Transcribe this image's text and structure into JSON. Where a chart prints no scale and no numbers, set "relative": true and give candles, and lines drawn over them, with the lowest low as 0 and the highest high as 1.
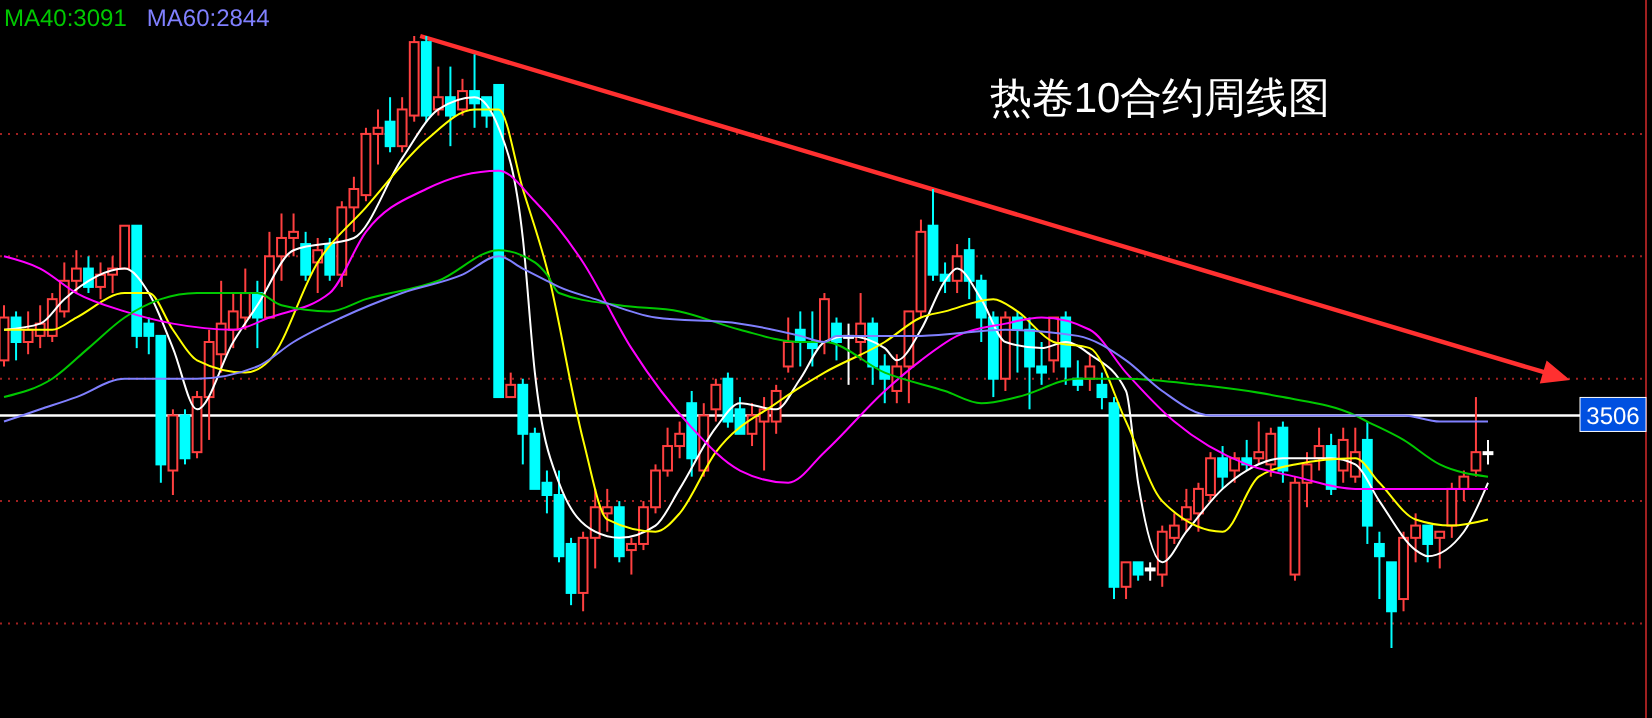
{
  "chart_data": {
    "type": "candlestick",
    "title": "热卷10合约周线图",
    "relative": true,
    "legend": "top left",
    "annotations": [
      "3506"
    ],
    "categories": [
      null,
      null,
      null,
      null,
      null,
      null,
      null,
      null,
      null,
      null,
      null,
      null,
      null,
      null,
      null,
      null,
      null,
      null,
      null,
      null,
      null,
      null,
      null,
      null,
      null,
      null,
      null,
      null,
      null,
      null,
      null,
      null,
      null,
      null,
      null,
      null,
      null,
      null,
      null,
      null,
      null,
      null,
      null,
      null,
      null,
      null,
      null,
      null,
      null,
      null,
      null,
      null,
      null,
      null,
      null,
      null,
      null,
      null,
      null,
      null,
      null,
      null,
      null,
      null,
      null,
      null,
      null,
      null,
      null,
      null,
      null,
      null,
      null,
      null,
      null,
      null,
      null,
      null,
      null,
      null,
      null,
      null,
      null,
      null,
      null,
      null,
      null,
      null,
      null,
      null,
      null,
      null,
      null,
      null,
      null,
      null,
      null,
      null,
      null,
      null,
      null,
      null,
      null,
      null,
      null,
      null,
      null,
      null,
      null,
      null,
      null,
      null,
      null,
      null,
      null,
      null,
      null,
      null,
      null,
      null,
      null,
      null,
      null,
      null
    ],
    "ohlc": [
      [
        0.47,
        0.56,
        0.46,
        0.54
      ],
      [
        0.54,
        0.55,
        0.47,
        0.5
      ],
      [
        0.5,
        0.55,
        0.48,
        0.52
      ],
      [
        0.51,
        0.56,
        0.49,
        0.53
      ],
      [
        0.51,
        0.58,
        0.5,
        0.57
      ],
      [
        0.55,
        0.63,
        0.54,
        0.6
      ],
      [
        0.6,
        0.65,
        0.58,
        0.62
      ],
      [
        0.62,
        0.64,
        0.58,
        0.59
      ],
      [
        0.59,
        0.63,
        0.57,
        0.61
      ],
      [
        0.61,
        0.64,
        0.58,
        0.62
      ],
      [
        0.62,
        0.69,
        0.62,
        0.69
      ],
      [
        0.69,
        0.69,
        0.49,
        0.51
      ],
      [
        0.53,
        0.54,
        0.48,
        0.51
      ],
      [
        0.51,
        0.51,
        0.27,
        0.3
      ],
      [
        0.29,
        0.39,
        0.25,
        0.38
      ],
      [
        0.38,
        0.39,
        0.3,
        0.31
      ],
      [
        0.32,
        0.42,
        0.31,
        0.41
      ],
      [
        0.41,
        0.52,
        0.34,
        0.5
      ],
      [
        0.48,
        0.6,
        0.45,
        0.53
      ],
      [
        0.52,
        0.58,
        0.49,
        0.55
      ],
      [
        0.54,
        0.62,
        0.52,
        0.58
      ],
      [
        0.58,
        0.6,
        0.49,
        0.54
      ],
      [
        0.54,
        0.68,
        0.54,
        0.64
      ],
      [
        0.64,
        0.71,
        0.6,
        0.67
      ],
      [
        0.67,
        0.71,
        0.64,
        0.68
      ],
      [
        0.66,
        0.68,
        0.6,
        0.61
      ],
      [
        0.63,
        0.67,
        0.58,
        0.65
      ],
      [
        0.66,
        0.67,
        0.6,
        0.61
      ],
      [
        0.61,
        0.73,
        0.59,
        0.72
      ],
      [
        0.72,
        0.77,
        0.68,
        0.75
      ],
      [
        0.74,
        0.85,
        0.73,
        0.84
      ],
      [
        0.84,
        0.88,
        0.79,
        0.85
      ],
      [
        0.86,
        0.9,
        0.81,
        0.82
      ],
      [
        0.82,
        0.9,
        0.81,
        0.88
      ],
      [
        0.87,
        1.0,
        0.86,
        0.99
      ],
      [
        0.99,
        1.0,
        0.86,
        0.87
      ],
      [
        0.88,
        0.95,
        0.87,
        0.9
      ],
      [
        0.9,
        0.95,
        0.82,
        0.87
      ],
      [
        0.88,
        0.93,
        0.87,
        0.91
      ],
      [
        0.91,
        0.97,
        0.85,
        0.89
      ],
      [
        0.9,
        0.9,
        0.85,
        0.87
      ],
      [
        0.92,
        0.92,
        0.41,
        0.41
      ],
      [
        0.41,
        0.45,
        0.41,
        0.43
      ],
      [
        0.43,
        0.44,
        0.3,
        0.35
      ],
      [
        0.35,
        0.36,
        0.26,
        0.26
      ],
      [
        0.27,
        0.29,
        0.22,
        0.25
      ],
      [
        0.25,
        0.29,
        0.14,
        0.15
      ],
      [
        0.17,
        0.18,
        0.07,
        0.09
      ],
      [
        0.09,
        0.19,
        0.06,
        0.18
      ],
      [
        0.18,
        0.26,
        0.13,
        0.23
      ],
      [
        0.22,
        0.26,
        0.19,
        0.23
      ],
      [
        0.23,
        0.24,
        0.14,
        0.15
      ],
      [
        0.16,
        0.18,
        0.12,
        0.17
      ],
      [
        0.17,
        0.24,
        0.16,
        0.23
      ],
      [
        0.23,
        0.3,
        0.22,
        0.29
      ],
      [
        0.29,
        0.36,
        0.28,
        0.33
      ],
      [
        0.33,
        0.37,
        0.31,
        0.35
      ],
      [
        0.4,
        0.42,
        0.28,
        0.31
      ],
      [
        0.29,
        0.4,
        0.28,
        0.38
      ],
      [
        0.39,
        0.44,
        0.37,
        0.43
      ],
      [
        0.44,
        0.45,
        0.36,
        0.37
      ],
      [
        0.39,
        0.41,
        0.35,
        0.35
      ],
      [
        0.35,
        0.4,
        0.33,
        0.38
      ],
      [
        0.37,
        0.41,
        0.29,
        0.39
      ],
      [
        0.37,
        0.43,
        0.35,
        0.42
      ],
      [
        0.46,
        0.54,
        0.45,
        0.5
      ],
      [
        0.52,
        0.55,
        0.46,
        0.5
      ],
      [
        0.5,
        0.55,
        0.46,
        0.49
      ],
      [
        0.5,
        0.58,
        0.48,
        0.57
      ],
      [
        0.53,
        0.54,
        0.47,
        0.5
      ],
      [
        0.51,
        0.53,
        0.43,
        0.51
      ],
      [
        0.5,
        0.58,
        0.47,
        0.53
      ],
      [
        0.53,
        0.54,
        0.43,
        0.46
      ],
      [
        0.46,
        0.48,
        0.4,
        0.44
      ],
      [
        0.42,
        0.48,
        0.4,
        0.46
      ],
      [
        0.46,
        0.55,
        0.4,
        0.55
      ],
      [
        0.55,
        0.7,
        0.54,
        0.68
      ],
      [
        0.69,
        0.75,
        0.6,
        0.61
      ],
      [
        0.61,
        0.63,
        0.58,
        0.6
      ],
      [
        0.6,
        0.66,
        0.58,
        0.64
      ],
      [
        0.65,
        0.67,
        0.57,
        0.6
      ],
      [
        0.6,
        0.61,
        0.5,
        0.54
      ],
      [
        0.54,
        0.55,
        0.41,
        0.44
      ],
      [
        0.44,
        0.55,
        0.42,
        0.54
      ],
      [
        0.54,
        0.55,
        0.45,
        0.52
      ],
      [
        0.52,
        0.54,
        0.39,
        0.46
      ],
      [
        0.46,
        0.5,
        0.43,
        0.45
      ],
      [
        0.47,
        0.54,
        0.45,
        0.54
      ],
      [
        0.54,
        0.55,
        0.43,
        0.46
      ],
      [
        0.44,
        0.47,
        0.42,
        0.43
      ],
      [
        0.44,
        0.48,
        0.42,
        0.46
      ],
      [
        0.43,
        0.45,
        0.39,
        0.41
      ],
      [
        0.4,
        0.41,
        0.08,
        0.1
      ],
      [
        0.1,
        0.14,
        0.08,
        0.14
      ],
      [
        0.14,
        0.14,
        0.11,
        0.12
      ],
      [
        0.13,
        0.14,
        0.11,
        0.13
      ],
      [
        0.12,
        0.2,
        0.1,
        0.19
      ],
      [
        0.18,
        0.22,
        0.17,
        0.2
      ],
      [
        0.21,
        0.26,
        0.19,
        0.23
      ],
      [
        0.22,
        0.27,
        0.19,
        0.26
      ],
      [
        0.25,
        0.32,
        0.24,
        0.31
      ],
      [
        0.31,
        0.33,
        0.26,
        0.28
      ],
      [
        0.29,
        0.32,
        0.27,
        0.31
      ],
      [
        0.31,
        0.34,
        0.29,
        0.3
      ],
      [
        0.31,
        0.37,
        0.3,
        0.32
      ],
      [
        0.3,
        0.36,
        0.28,
        0.35
      ],
      [
        0.36,
        0.37,
        0.27,
        0.29
      ],
      [
        0.12,
        0.28,
        0.11,
        0.27
      ],
      [
        0.27,
        0.32,
        0.23,
        0.3
      ],
      [
        0.31,
        0.36,
        0.29,
        0.33
      ],
      [
        0.33,
        0.35,
        0.25,
        0.26
      ],
      [
        0.29,
        0.36,
        0.27,
        0.34
      ],
      [
        0.28,
        0.36,
        0.27,
        0.32
      ],
      [
        0.34,
        0.37,
        0.17,
        0.2
      ],
      [
        0.17,
        0.19,
        0.08,
        0.15
      ],
      [
        0.14,
        0.14,
        0,
        0.06
      ],
      [
        0.08,
        0.19,
        0.06,
        0.18
      ],
      [
        0.18,
        0.22,
        0.14,
        0.2
      ],
      [
        0.2,
        0.2,
        0.14,
        0.17
      ],
      [
        0.18,
        0.19,
        0.13,
        0.19
      ],
      [
        0.2,
        0.27,
        0.18,
        0.26
      ],
      [
        0.26,
        0.29,
        0.24,
        0.28
      ],
      [
        0.29,
        0.41,
        0.28,
        0.32
      ],
      [
        0.32,
        0.34,
        0.3,
        0.32
      ]
    ],
    "series": [
      {
        "type": "line",
        "color": "#ffffff",
        "values": [
          0.52,
          null,
          null,
          0.53,
          null,
          0.57,
          null,
          null,
          null,
          null,
          0.62,
          null,
          0.58,
          null,
          0.49,
          null,
          0.39,
          null,
          null,
          0.5,
          null,
          0.56,
          null,
          null,
          0.65,
          null,
          null,
          null,
          null,
          0.67,
          null,
          null,
          null,
          0.8,
          null,
          null,
          0.88,
          null,
          null,
          0.9,
          null,
          0.85,
          null,
          0.67,
          0.45,
          null,
          0.27,
          null,
          null,
          0.19,
          null,
          0.18,
          null,
          null,
          0.2,
          null,
          0.26,
          null,
          null,
          0.36,
          null,
          0.4,
          null,
          null,
          0.39,
          null,
          0.44,
          null,
          0.5,
          null,
          0.51,
          null,
          null,
          0.49,
          0.47,
          null,
          0.52,
          null,
          0.6,
          0.62,
          null,
          0.57,
          null,
          0.5,
          null,
          null,
          0.49,
          null,
          0.5,
          null,
          0.48,
          null,
          null,
          0.42,
          0.27,
          null,
          0.14,
          null,
          0.19,
          null,
          null,
          0.26,
          null,
          0.29,
          null,
          null,
          0.31,
          0.31,
          null,
          null,
          0.31,
          null,
          0.3,
          null,
          0.24,
          null,
          null,
          0.16,
          0.15,
          null,
          null,
          0.19,
          null,
          0.27
        ]
      },
      {
        "type": "line",
        "color": "#ffff00",
        "values": [
          0.52,
          null,
          null,
          null,
          0.52,
          null,
          0.54,
          null,
          null,
          null,
          0.58,
          null,
          0.58,
          null,
          0.52,
          null,
          0.47,
          null,
          null,
          null,
          0.45,
          null,
          0.47,
          null,
          null,
          null,
          0.63,
          null,
          null,
          null,
          0.72,
          null,
          null,
          null,
          null,
          0.83,
          null,
          null,
          null,
          0.88,
          null,
          0.88,
          null,
          0.75,
          null,
          0.62,
          null,
          null,
          0.34,
          null,
          0.21,
          null,
          null,
          null,
          0.19,
          null,
          0.22,
          null,
          null,
          0.32,
          null,
          null,
          null,
          null,
          0.4,
          null,
          null,
          null,
          0.45,
          null,
          null,
          null,
          null,
          0.5,
          null,
          null,
          0.54,
          null,
          0.55,
          null,
          null,
          null,
          0.57,
          null,
          0.55,
          null,
          null,
          0.5,
          null,
          null,
          0.49,
          null,
          null,
          0.37,
          null,
          null,
          0.24,
          null,
          null,
          null,
          null,
          0.19,
          null,
          null,
          0.28,
          null,
          null,
          0.3,
          null,
          null,
          null,
          null,
          0.31,
          null,
          0.27,
          null,
          null,
          0.21,
          null,
          null,
          0.2,
          null,
          null,
          0.21
        ]
      },
      {
        "type": "line",
        "color": "#ff00ff",
        "values": [
          0.64,
          null,
          null,
          0.62,
          null,
          null,
          0.58,
          null,
          null,
          null,
          0.55,
          null,
          null,
          null,
          0.53,
          null,
          null,
          null,
          null,
          0.52,
          null,
          null,
          0.54,
          null,
          null,
          null,
          null,
          0.58,
          null,
          null,
          0.68,
          null,
          null,
          null,
          null,
          0.75,
          null,
          null,
          null,
          null,
          null,
          0.78,
          null,
          null,
          0.73,
          null,
          null,
          null,
          0.63,
          null,
          null,
          null,
          0.49,
          null,
          null,
          null,
          null,
          0.36,
          null,
          null,
          null,
          0.29,
          null,
          null,
          null,
          0.27,
          null,
          null,
          0.32,
          null,
          null,
          null,
          null,
          0.42,
          null,
          null,
          0.47,
          null,
          null,
          0.51,
          null,
          null,
          null,
          0.53,
          null,
          null,
          0.54,
          null,
          null,
          null,
          0.52,
          null,
          null,
          0.45,
          null,
          null,
          null,
          0.37,
          null,
          null,
          null,
          null,
          null,
          0.3,
          null,
          null,
          null,
          0.28,
          null,
          null,
          null,
          null,
          0.26,
          null,
          null,
          null,
          null,
          0.26,
          null,
          null,
          null,
          null,
          null,
          0.26
        ]
      },
      {
        "type": "line",
        "name": "MA40:3091",
        "color": "#00c800",
        "values": [
          0.41,
          null,
          null,
          null,
          0.44,
          null,
          null,
          0.49,
          null,
          null,
          0.54,
          null,
          null,
          0.57,
          null,
          null,
          0.58,
          null,
          null,
          null,
          null,
          0.58,
          null,
          0.56,
          null,
          null,
          null,
          0.55,
          null,
          null,
          0.57,
          null,
          null,
          null,
          null,
          null,
          0.6,
          null,
          null,
          null,
          null,
          0.65,
          null,
          null,
          0.63,
          0.61,
          0.58,
          null,
          null,
          null,
          null,
          0.56,
          null,
          null,
          null,
          null,
          0.55,
          null,
          null,
          null,
          null,
          0.52,
          null,
          null,
          null,
          null,
          0.5,
          null,
          0.5,
          null,
          null,
          null,
          null,
          0.45,
          null,
          null,
          null,
          null,
          0.42,
          null,
          null,
          0.4,
          null,
          null,
          0.41,
          null,
          null,
          null,
          null,
          0.44,
          null,
          null,
          null,
          0.44,
          null,
          null,
          null,
          null,
          null,
          0.43,
          null,
          null,
          null,
          null,
          null,
          null,
          0.41,
          null,
          null,
          null,
          null,
          null,
          0.38,
          0.37,
          null,
          null,
          0.34,
          null,
          null,
          0.3,
          null,
          null,
          null,
          0.28
        ]
      },
      {
        "type": "line",
        "name": "MA60:2844",
        "color": "#8080ff",
        "values": [
          0.37,
          null,
          null,
          0.39,
          null,
          null,
          0.41,
          null,
          null,
          null,
          0.44,
          null,
          null,
          0.44,
          null,
          null,
          0.44,
          null,
          null,
          null,
          null,
          0.46,
          null,
          null,
          0.5,
          null,
          null,
          null,
          0.54,
          null,
          null,
          null,
          null,
          0.58,
          null,
          null,
          null,
          null,
          0.61,
          null,
          null,
          0.64,
          null,
          0.62,
          null,
          0.6,
          0.59,
          null,
          null,
          0.57,
          null,
          null,
          null,
          null,
          0.54,
          null,
          null,
          null,
          null,
          null,
          null,
          0.53,
          null,
          null,
          null,
          null,
          0.51,
          null,
          0.5,
          0.51,
          null,
          null,
          null,
          null,
          null,
          null,
          0.51,
          null,
          null,
          null,
          null,
          null,
          null,
          0.52,
          null,
          null,
          null,
          null,
          null,
          0.51,
          null,
          null,
          null,
          0.47,
          null,
          null,
          0.42,
          null,
          null,
          null,
          0.38,
          null,
          null,
          null,
          null,
          null,
          0.38,
          null,
          null,
          null,
          null,
          null,
          0.38,
          null,
          null,
          null,
          0.38,
          null,
          null,
          0.37,
          null,
          null,
          null,
          0.37
        ]
      }
    ],
    "ref_lines": [
      {
        "axis": "y",
        "value": 0.38,
        "color": "#ffffff"
      },
      {
        "axis": "y",
        "value": 0.84,
        "color": "#a02020",
        "line_style": "dotted"
      },
      {
        "axis": "y",
        "value": 0.64,
        "color": "#a02020",
        "line_style": "dotted"
      },
      {
        "axis": "y",
        "value": 0.44,
        "color": "#a02020",
        "line_style": "dotted"
      },
      {
        "axis": "y",
        "value": 0.24,
        "color": "#a02020",
        "line_style": "dotted"
      },
      {
        "axis": "y",
        "value": 0.04,
        "color": "#a02020",
        "line_style": "dotted"
      }
    ]
  }
}
